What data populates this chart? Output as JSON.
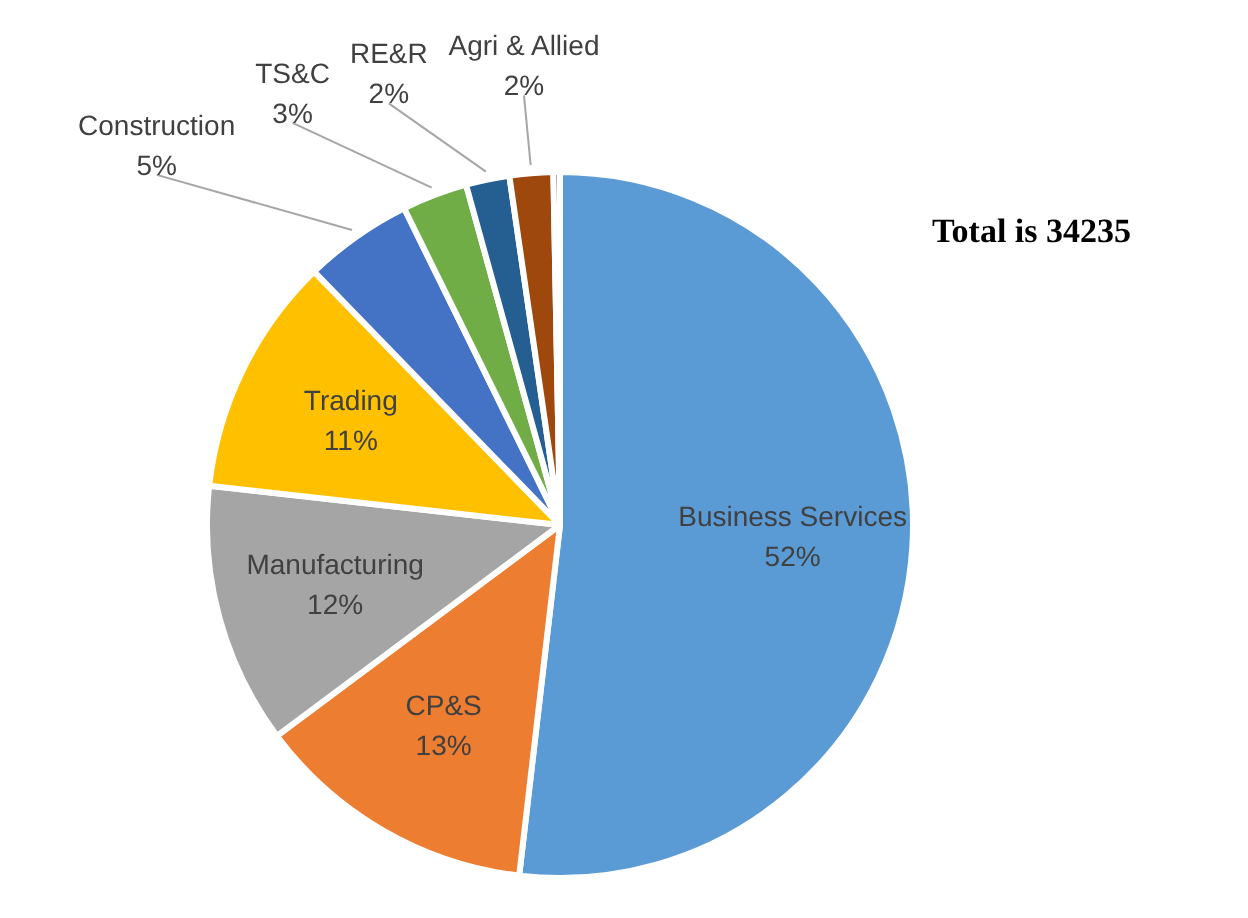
{
  "chart_data": {
    "type": "pie",
    "categories": [
      "Business Services",
      "CP&S",
      "Manufacturing",
      "Trading",
      "Construction",
      "TS&C",
      "RE&R",
      "Agri & Allied",
      null
    ],
    "values": [
      52,
      13,
      12,
      11,
      5,
      3,
      2,
      2,
      0.3
    ],
    "value_labels": [
      "52%",
      "13%",
      "12%",
      "11%",
      "5%",
      "3%",
      "2%",
      "2%",
      null
    ],
    "colors": [
      "#5b9bd5",
      "#ed7d31",
      "#a5a5a5",
      "#ffc000",
      "#4472c4",
      "#70ad47",
      "#255e91",
      "#9e480e",
      "#636363"
    ],
    "annotations": [
      "Total is 34235"
    ],
    "legend": false
  }
}
